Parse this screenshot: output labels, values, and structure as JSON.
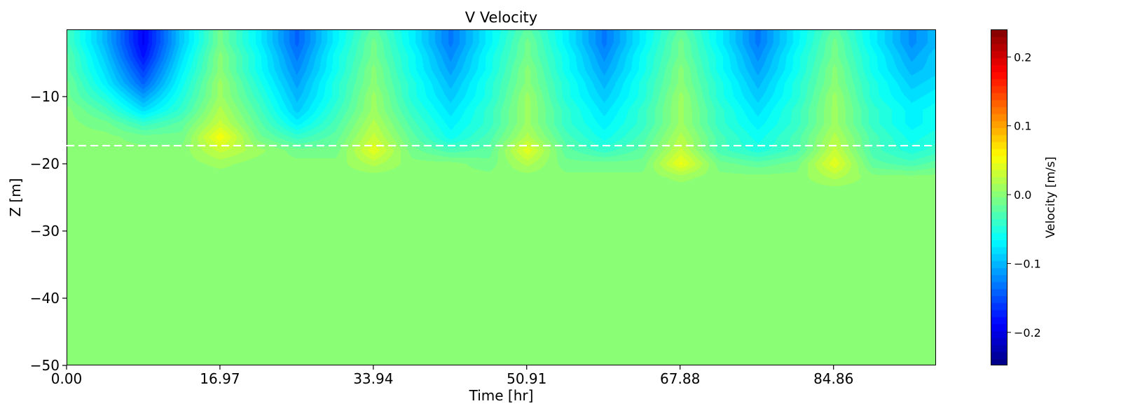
{
  "chart_data": {
    "type": "heatmap",
    "subtype": "filled-contour",
    "title": "V Velocity",
    "xlabel": "Time [hr]",
    "ylabel": "Z [m]",
    "colorbar_label": "Velocity [m/s]",
    "colormap": "jet",
    "clim": [
      -0.248,
      0.24
    ],
    "levels": 48,
    "xlim": [
      0,
      96.2
    ],
    "ylim": [
      -50,
      0
    ],
    "x_ticks": [
      "0.00",
      "16.97",
      "33.94",
      "50.91",
      "67.88",
      "84.86"
    ],
    "y_ticks": [
      "−10",
      "−20",
      "−30",
      "−40",
      "−50"
    ],
    "colorbar_ticks": [
      "0.2",
      "0.1",
      "0.0",
      "−0.1",
      "−0.2"
    ],
    "reference_line": {
      "z": -17.3,
      "style": "dashed",
      "color": "#ffffff"
    },
    "grid": false,
    "z": [
      0,
      -2,
      -4,
      -6,
      -8,
      -10,
      -12,
      -14,
      -16,
      -18,
      -20,
      -22,
      -24,
      -50
    ],
    "time": [
      0,
      4.25,
      8.5,
      12.75,
      17,
      21.25,
      25.5,
      29.75,
      34,
      38.25,
      42.5,
      46.75,
      51,
      55.25,
      59.5,
      63.75,
      68,
      72.25,
      76.5,
      80.75,
      85,
      89.25,
      93.5,
      96
    ],
    "values": [
      [
        -0.03,
        -0.03,
        -0.02,
        -0.02,
        -0.01,
        -0.01,
        0,
        0,
        0,
        0,
        0,
        0,
        0,
        0
      ],
      [
        -0.1,
        -0.1,
        -0.09,
        -0.08,
        -0.07,
        -0.05,
        -0.03,
        -0.01,
        0,
        0,
        0,
        0,
        0,
        0
      ],
      [
        -0.19,
        -0.19,
        -0.18,
        -0.16,
        -0.14,
        -0.11,
        -0.08,
        -0.04,
        -0.01,
        0,
        0,
        0,
        0,
        0
      ],
      [
        -0.09,
        -0.09,
        -0.08,
        -0.07,
        -0.06,
        -0.05,
        -0.04,
        -0.02,
        -0.01,
        0,
        0,
        0,
        0,
        0
      ],
      [
        -0.01,
        -0.01,
        0,
        0,
        0.01,
        0.01,
        0.02,
        0.03,
        0.055,
        0.03,
        0.01,
        0,
        0,
        0
      ],
      [
        -0.07,
        -0.07,
        -0.06,
        -0.06,
        -0.05,
        -0.04,
        -0.03,
        -0.02,
        -0.01,
        0.01,
        0,
        0,
        0,
        0
      ],
      [
        -0.14,
        -0.14,
        -0.13,
        -0.12,
        -0.11,
        -0.1,
        -0.09,
        -0.07,
        -0.04,
        -0.01,
        0,
        0,
        0,
        0
      ],
      [
        -0.07,
        -0.07,
        -0.06,
        -0.06,
        -0.05,
        -0.05,
        -0.04,
        -0.03,
        -0.02,
        -0.01,
        0,
        0,
        0,
        0
      ],
      [
        -0.02,
        -0.01,
        -0.01,
        0,
        0,
        0.01,
        0.01,
        0.02,
        0.03,
        0.045,
        0.02,
        0,
        0,
        0
      ],
      [
        -0.07,
        -0.07,
        -0.06,
        -0.06,
        -0.05,
        -0.05,
        -0.04,
        -0.03,
        -0.02,
        -0.01,
        0,
        0,
        0,
        0
      ],
      [
        -0.13,
        -0.13,
        -0.12,
        -0.11,
        -0.1,
        -0.09,
        -0.08,
        -0.07,
        -0.06,
        -0.03,
        0,
        0,
        0,
        0
      ],
      [
        -0.07,
        -0.07,
        -0.06,
        -0.06,
        -0.05,
        -0.05,
        -0.04,
        -0.04,
        -0.03,
        -0.02,
        -0.01,
        0,
        0,
        0
      ],
      [
        -0.02,
        -0.01,
        -0.01,
        0,
        0,
        0.01,
        0.01,
        0.01,
        0.02,
        0.045,
        0.02,
        0,
        0,
        0
      ],
      [
        -0.07,
        -0.07,
        -0.06,
        -0.06,
        -0.05,
        -0.05,
        -0.04,
        -0.04,
        -0.03,
        -0.02,
        -0.01,
        0,
        0,
        0
      ],
      [
        -0.13,
        -0.13,
        -0.12,
        -0.11,
        -0.1,
        -0.09,
        -0.08,
        -0.07,
        -0.06,
        -0.04,
        -0.01,
        0,
        0,
        0
      ],
      [
        -0.07,
        -0.07,
        -0.06,
        -0.06,
        -0.05,
        -0.05,
        -0.04,
        -0.04,
        -0.03,
        -0.02,
        -0.01,
        0,
        0,
        0
      ],
      [
        -0.02,
        -0.01,
        -0.01,
        0,
        0,
        0.01,
        0.01,
        0.01,
        0.02,
        0.03,
        0.05,
        0.01,
        0,
        0
      ],
      [
        -0.07,
        -0.07,
        -0.06,
        -0.06,
        -0.05,
        -0.05,
        -0.04,
        -0.04,
        -0.03,
        -0.03,
        -0.01,
        0,
        0,
        0
      ],
      [
        -0.13,
        -0.13,
        -0.12,
        -0.11,
        -0.1,
        -0.09,
        -0.08,
        -0.07,
        -0.06,
        -0.05,
        -0.02,
        0,
        0,
        0
      ],
      [
        -0.07,
        -0.07,
        -0.06,
        -0.06,
        -0.05,
        -0.05,
        -0.04,
        -0.04,
        -0.03,
        -0.03,
        -0.01,
        0,
        0,
        0
      ],
      [
        -0.02,
        -0.01,
        -0.01,
        0,
        0,
        0.01,
        0.01,
        0.01,
        0.02,
        0.03,
        0.045,
        0.02,
        0,
        0
      ],
      [
        -0.07,
        -0.07,
        -0.06,
        -0.06,
        -0.05,
        -0.05,
        -0.04,
        -0.04,
        -0.03,
        -0.03,
        -0.02,
        0,
        0,
        0
      ],
      [
        -0.12,
        -0.12,
        -0.11,
        -0.1,
        -0.09,
        -0.08,
        -0.07,
        -0.07,
        -0.06,
        -0.05,
        -0.03,
        0,
        0,
        0
      ],
      [
        -0.1,
        -0.1,
        -0.09,
        -0.09,
        -0.08,
        -0.07,
        -0.06,
        -0.06,
        -0.05,
        -0.04,
        -0.02,
        0,
        0,
        0
      ]
    ]
  }
}
